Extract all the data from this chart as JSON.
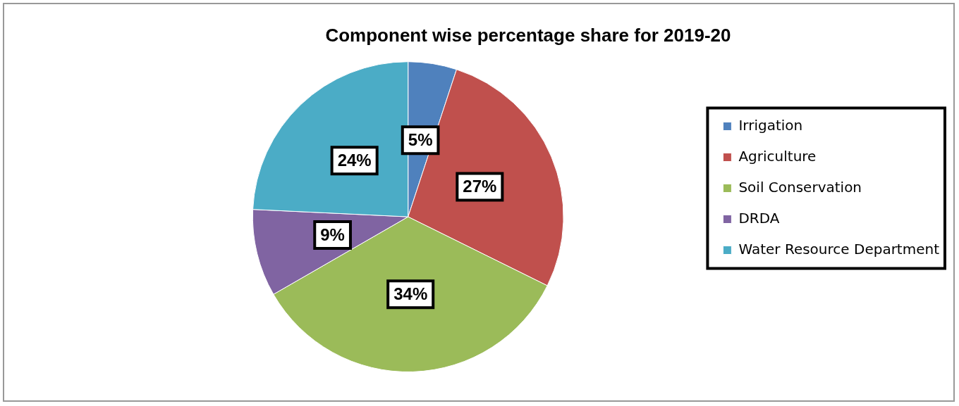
{
  "chart_data": {
    "type": "pie",
    "title": "Component wise percentage share for 2019-20",
    "categories": [
      "Irrigation",
      "Agriculture",
      "Soil Conservation",
      "DRDA",
      "Water Resource Department"
    ],
    "values": [
      5,
      27,
      34,
      9,
      24
    ],
    "colors": [
      "#4f81bd",
      "#c0504d",
      "#9bbb59",
      "#8064a2",
      "#4bacc6"
    ],
    "value_labels": [
      "5%",
      "27%",
      "34%",
      "9%",
      "24%"
    ],
    "legend": "right"
  }
}
